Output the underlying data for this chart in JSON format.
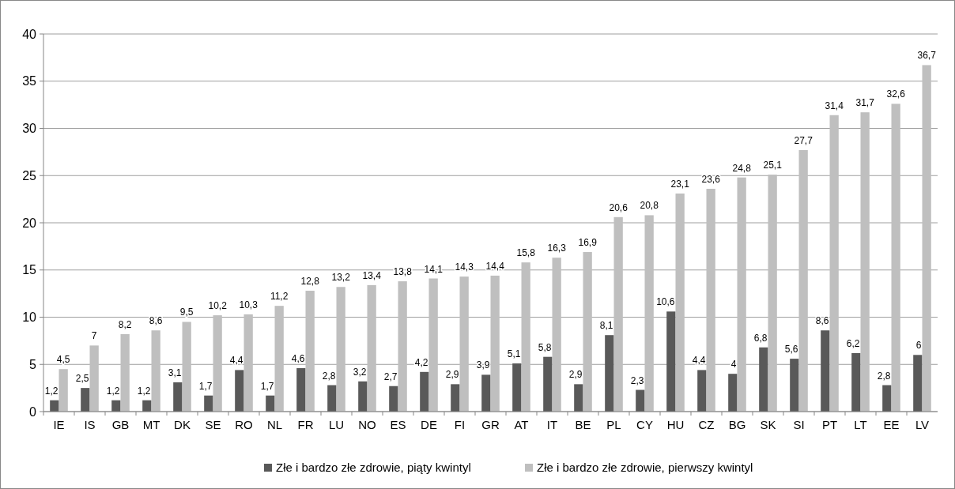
{
  "chart_data": {
    "type": "bar",
    "categories": [
      "IE",
      "IS",
      "GB",
      "MT",
      "DK",
      "SE",
      "RO",
      "NL",
      "FR",
      "LU",
      "NO",
      "ES",
      "DE",
      "FI",
      "GR",
      "AT",
      "IT",
      "BE",
      "PL",
      "CY",
      "HU",
      "CZ",
      "BG",
      "SK",
      "SI",
      "PT",
      "LT",
      "EE",
      "LV"
    ],
    "series": [
      {
        "name": "Złe i bardzo złe zdrowie, piąty kwintyl",
        "color": "#595959",
        "values": [
          1.2,
          2.5,
          1.2,
          1.2,
          3.1,
          1.7,
          4.4,
          1.7,
          4.6,
          2.8,
          3.2,
          2.7,
          4.2,
          2.9,
          3.9,
          5.1,
          5.8,
          2.9,
          8.1,
          2.3,
          10.6,
          4.4,
          4,
          6.8,
          5.6,
          8.6,
          6.2,
          2.8,
          6
        ],
        "value_labels": [
          "1,2",
          "2,5",
          "1,2",
          "1,2",
          "3,1",
          "1,7",
          "4,4",
          "1,7",
          "4,6",
          "2,8",
          "3,2",
          "2,7",
          "4,2",
          "2,9",
          "3,9",
          "5,1",
          "5,8",
          "2,9",
          "8,1",
          "2,3",
          "10,6",
          "4,4",
          "4",
          "6,8",
          "5,6",
          "8,6",
          "6,2",
          "2,8",
          "6"
        ]
      },
      {
        "name": "Złe i bardzo złe zdrowie, pierwszy kwintyl",
        "color": "#bfbfbf",
        "values": [
          4.5,
          7,
          8.2,
          8.6,
          9.5,
          10.2,
          10.3,
          11.2,
          12.8,
          13.2,
          13.4,
          13.8,
          14.1,
          14.3,
          14.4,
          15.8,
          16.3,
          16.9,
          20.6,
          20.8,
          23.1,
          23.6,
          24.8,
          25.1,
          27.7,
          31.4,
          31.7,
          32.6,
          36.7
        ],
        "value_labels": [
          "4,5",
          "7",
          "8,2",
          "8,6",
          "9,5",
          "10,2",
          "10,3",
          "11,2",
          "12,8",
          "13,2",
          "13,4",
          "13,8",
          "14,1",
          "14,3",
          "14,4",
          "15,8",
          "16,3",
          "16,9",
          "20,6",
          "20,8",
          "23,1",
          "23,6",
          "24,8",
          "25,1",
          "27,7",
          "31,4",
          "31,7",
          "32,6",
          "36,7"
        ]
      }
    ],
    "ylim": [
      0,
      40
    ],
    "yticks": [
      0,
      5,
      10,
      15,
      20,
      25,
      30,
      35,
      40
    ],
    "grid": "y",
    "legend": "bottom"
  }
}
